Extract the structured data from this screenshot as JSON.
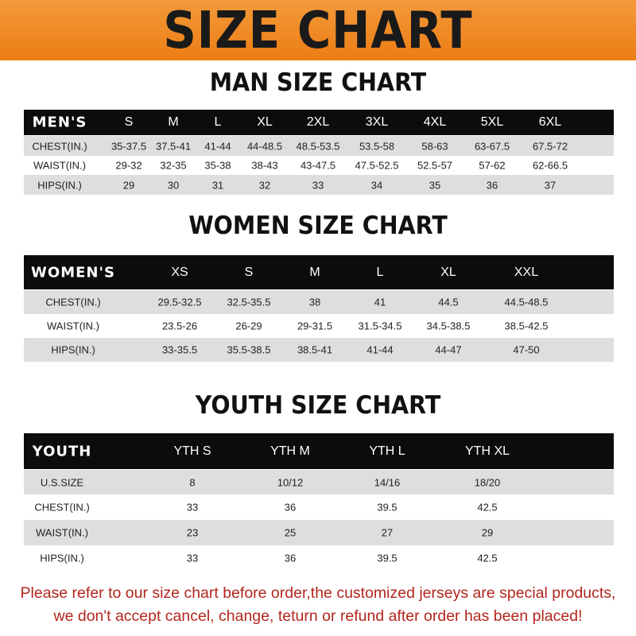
{
  "banner": {
    "title": "SIZE CHART",
    "color": "#ec7d14"
  },
  "men": {
    "title": "MAN SIZE CHART",
    "header": [
      "MEN'S",
      "S",
      "M",
      "L",
      "XL",
      "2XL",
      "3XL",
      "4XL",
      "5XL",
      "6XL"
    ],
    "rows": [
      [
        "CHEST(IN.)",
        "35-37.5",
        "37.5-41",
        "41-44",
        "44-48.5",
        "48.5-53.5",
        "53.5-58",
        "58-63",
        "63-67.5",
        "67.5-72"
      ],
      [
        "WAIST(IN.)",
        "29-32",
        "32-35",
        "35-38",
        "38-43",
        "43-47.5",
        "47.5-52.5",
        "52.5-57",
        "57-62",
        "62-66.5"
      ],
      [
        "HIPS(IN.)",
        "29",
        "30",
        "31",
        "32",
        "33",
        "34",
        "35",
        "36",
        "37"
      ]
    ]
  },
  "women": {
    "title": "WOMEN SIZE CHART",
    "header": [
      "WOMEN'S",
      "XS",
      "S",
      "M",
      "L",
      "XL",
      "XXL"
    ],
    "rows": [
      [
        "CHEST(IN.)",
        "29.5-32.5",
        "32.5-35.5",
        "38",
        "41",
        "44.5",
        "44.5-48.5"
      ],
      [
        "WAIST(IN.)",
        "23.5-26",
        "26-29",
        "29-31.5",
        "31.5-34.5",
        "34.5-38.5",
        "38.5-42.5"
      ],
      [
        "HIPS(IN.)",
        "33-35.5",
        "35.5-38.5",
        "38.5-41",
        "41-44",
        "44-47",
        "47-50"
      ]
    ]
  },
  "youth": {
    "title": "YOUTH SIZE CHART",
    "header": [
      "YOUTH",
      "YTH S",
      "YTH M",
      "YTH L",
      "YTH XL"
    ],
    "rows": [
      [
        "U.S.SIZE",
        "8",
        "10/12",
        "14/16",
        "18/20"
      ],
      [
        "CHEST(IN.)",
        "33",
        "36",
        "39.5",
        "42.5"
      ],
      [
        "WAIST(IN.)",
        "23",
        "25",
        "27",
        "29"
      ],
      [
        "HIPS(IN.)",
        "33",
        "36",
        "39.5",
        "42.5"
      ]
    ]
  },
  "footer": {
    "line1": "Please refer to our size chart before order,the customized jerseys are special products,",
    "line2": "we don't accept cancel, change, teturn or refund after order has been placed!",
    "color": "#b3261e"
  }
}
